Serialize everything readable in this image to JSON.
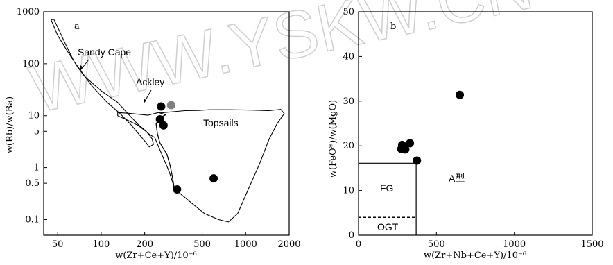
{
  "watermark": "WWW.YSKW.CN",
  "chart_data": [
    {
      "type": "scatter",
      "panel_label": "a",
      "xscale": "log",
      "yscale": "log",
      "xlim": [
        40,
        2000
      ],
      "ylim": [
        0.05,
        1000
      ],
      "xticks": [
        50,
        100,
        200,
        500,
        1000,
        2000
      ],
      "xtick_labels": [
        "50",
        "100",
        "200",
        "500",
        "1000",
        "2000"
      ],
      "yticks": [
        0.1,
        0.5,
        1,
        5,
        10,
        100,
        1000
      ],
      "ytick_labels": [
        "0.1",
        "0.5",
        "1",
        "5",
        "10",
        "100",
        "1000"
      ],
      "xlabel": "w(Zr+Ce+Y)/10⁻⁶",
      "ylabel": "w(Rb)/w(Ba)",
      "fields": [
        {
          "name": "Sandy Cape",
          "polygon": [
            [
              45,
              700
            ],
            [
              47,
              720
            ],
            [
              52,
              400
            ],
            [
              57,
              230
            ],
            [
              65,
              110
            ],
            [
              78,
              55
            ],
            [
              100,
              30
            ],
            [
              130,
              18
            ],
            [
              155,
              10.5
            ],
            [
              180,
              6.8
            ],
            [
              205,
              5
            ],
            [
              225,
              3.6
            ],
            [
              230,
              2.8
            ],
            [
              215,
              2.5
            ],
            [
              205,
              3
            ],
            [
              185,
              4.2
            ],
            [
              160,
              6.8
            ],
            [
              135,
              11
            ],
            [
              110,
              18
            ],
            [
              88,
              35
            ],
            [
              70,
              80
            ],
            [
              58,
              180
            ],
            [
              50,
              350
            ]
          ]
        },
        {
          "name": "Ackley",
          "polygon": [
            [
              130,
              11.5
            ],
            [
              160,
              11
            ],
            [
              210,
              10.2
            ],
            [
              250,
              11.5
            ],
            [
              280,
              10.4
            ],
            [
              255,
              9.2
            ],
            [
              240,
              7
            ],
            [
              245,
              4.5
            ],
            [
              255,
              3
            ],
            [
              285,
              1.8
            ],
            [
              300,
              1.1
            ],
            [
              310,
              0.7
            ],
            [
              320,
              0.42
            ],
            [
              295,
              0.85
            ],
            [
              270,
              1.5
            ],
            [
              250,
              2.5
            ],
            [
              235,
              3.8
            ],
            [
              220,
              4.2
            ],
            [
              200,
              5.2
            ],
            [
              180,
              6.5
            ],
            [
              155,
              8
            ],
            [
              130,
              10
            ]
          ]
        },
        {
          "name": "Topsails",
          "polygon": [
            [
              255,
              11.3
            ],
            [
              300,
              11.8
            ],
            [
              380,
              12.5
            ],
            [
              470,
              12.6
            ],
            [
              560,
              13
            ],
            [
              780,
              13
            ],
            [
              1100,
              12.8
            ],
            [
              1450,
              12.5
            ],
            [
              1750,
              13.2
            ],
            [
              1850,
              11
            ],
            [
              1650,
              7
            ],
            [
              1450,
              3.5
            ],
            [
              1250,
              1.2
            ],
            [
              1050,
              0.4
            ],
            [
              880,
              0.13
            ],
            [
              760,
              0.09
            ],
            [
              650,
              0.1
            ],
            [
              520,
              0.13
            ],
            [
              430,
              0.2
            ],
            [
              360,
              0.3
            ],
            [
              320,
              0.4
            ],
            [
              310,
              0.7
            ],
            [
              300,
              1.1
            ],
            [
              285,
              1.8
            ],
            [
              255,
              3
            ],
            [
              245,
              4.5
            ],
            [
              240,
              7
            ],
            [
              255,
              9.2
            ],
            [
              280,
              10.4
            ],
            [
              250,
              11.5
            ]
          ]
        }
      ],
      "field_labels": [
        "Sandy Cape",
        "Ackley",
        "Topsails"
      ],
      "points": [
        {
          "x": 260,
          "y": 15,
          "color": "#000000"
        },
        {
          "x": 305,
          "y": 16,
          "color": "#808080"
        },
        {
          "x": 255,
          "y": 8.5,
          "color": "#000000"
        },
        {
          "x": 270,
          "y": 6.5,
          "color": "#000000"
        },
        {
          "x": 600,
          "y": 0.62,
          "color": "#000000"
        },
        {
          "x": 335,
          "y": 0.38,
          "color": "#000000"
        }
      ]
    },
    {
      "type": "scatter",
      "panel_label": "b",
      "xscale": "linear",
      "yscale": "linear",
      "xlim": [
        0,
        1500
      ],
      "ylim": [
        0,
        50
      ],
      "xticks": [
        0,
        500,
        1000,
        1500
      ],
      "yticks": [
        0,
        10,
        20,
        30,
        40,
        50
      ],
      "xlabel": "w(Zr+Nb+Ce+Y)/10⁻⁶",
      "ylabel": "w(FeO*)/w(MgO)",
      "region_labels": [
        "FG",
        "OGT",
        "A型"
      ],
      "points": [
        {
          "x": 280,
          "y": 20.2
        },
        {
          "x": 330,
          "y": 20.6
        },
        {
          "x": 275,
          "y": 19.3
        },
        {
          "x": 300,
          "y": 19.2
        },
        {
          "x": 375,
          "y": 16.7
        },
        {
          "x": 650,
          "y": 31.4
        }
      ]
    }
  ]
}
